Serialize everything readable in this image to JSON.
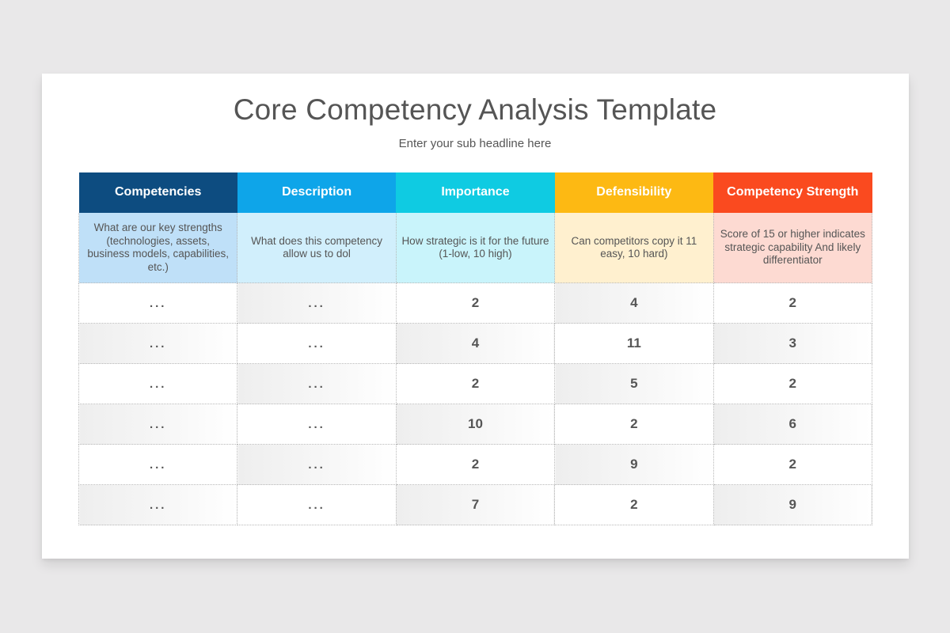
{
  "slide": {
    "title": "Core Competency Analysis Template",
    "subtitle": "Enter your sub headline here"
  },
  "table": {
    "columns": [
      {
        "label": "Competencies",
        "header_color": "#0d4c80",
        "desc_color": "#bfe0f8",
        "description": "What are our key strengths (technologies, assets, business models, capabilities, etc.)"
      },
      {
        "label": "Description",
        "header_color": "#0ea5e9",
        "desc_color": "#d1effc",
        "description": "What does this competency allow us to dol"
      },
      {
        "label": "Importance",
        "header_color": "#0fcbe2",
        "desc_color": "#c9f4fb",
        "description": "How strategic is it for the future (1-low, 10 high)"
      },
      {
        "label": "Defensibility",
        "header_color": "#fdb913",
        "desc_color": "#fff0cf",
        "description": "Can competitors copy it 11 easy, 10 hard)"
      },
      {
        "label": "Competency Strength",
        "header_color": "#fa4a1f",
        "desc_color": "#fddad2",
        "description": "Score of 15 or higher indicates strategic capability And likely differentiator"
      }
    ],
    "rows": [
      [
        "...",
        "...",
        "2",
        "4",
        "2"
      ],
      [
        "...",
        "...",
        "4",
        "11",
        "3"
      ],
      [
        "...",
        "...",
        "2",
        "5",
        "2"
      ],
      [
        "...",
        "...",
        "10",
        "2",
        "6"
      ],
      [
        "...",
        "...",
        "2",
        "9",
        "2"
      ],
      [
        "...",
        "...",
        "7",
        "2",
        "9"
      ]
    ]
  }
}
